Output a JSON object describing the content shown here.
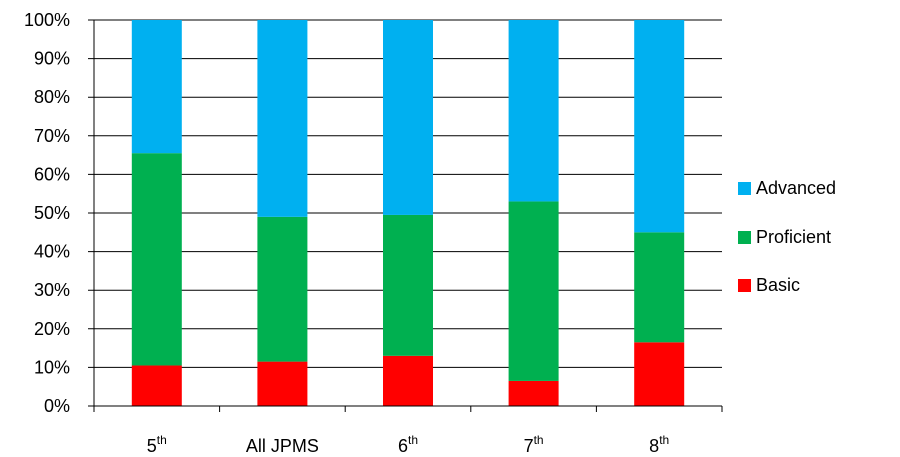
{
  "chart_data": {
    "type": "bar",
    "stacked": true,
    "percent": true,
    "title": "",
    "xlabel": "",
    "ylabel": "",
    "categories": [
      {
        "base": "5",
        "sup": "th"
      },
      {
        "base": "All JPMS",
        "sup": ""
      },
      {
        "base": "6",
        "sup": "th"
      },
      {
        "base": "7",
        "sup": "th"
      },
      {
        "base": "8",
        "sup": "th"
      }
    ],
    "series": [
      {
        "name": "Basic",
        "color": "#ff0000",
        "values": [
          10.5,
          11.5,
          13,
          6.5,
          16.5
        ]
      },
      {
        "name": "Proficient",
        "color": "#00b050",
        "values": [
          55,
          37.5,
          36.5,
          46.5,
          28.5
        ]
      },
      {
        "name": "Advanced",
        "color": "#00b0f0",
        "values": [
          34.5,
          51,
          50.5,
          47,
          55
        ]
      }
    ],
    "ylim": [
      0,
      100
    ],
    "yticks": [
      "0%",
      "10%",
      "20%",
      "30%",
      "40%",
      "50%",
      "60%",
      "70%",
      "80%",
      "90%",
      "100%"
    ],
    "grid": true,
    "legend_position": "right",
    "legend_order": [
      "Advanced",
      "Proficient",
      "Basic"
    ]
  }
}
